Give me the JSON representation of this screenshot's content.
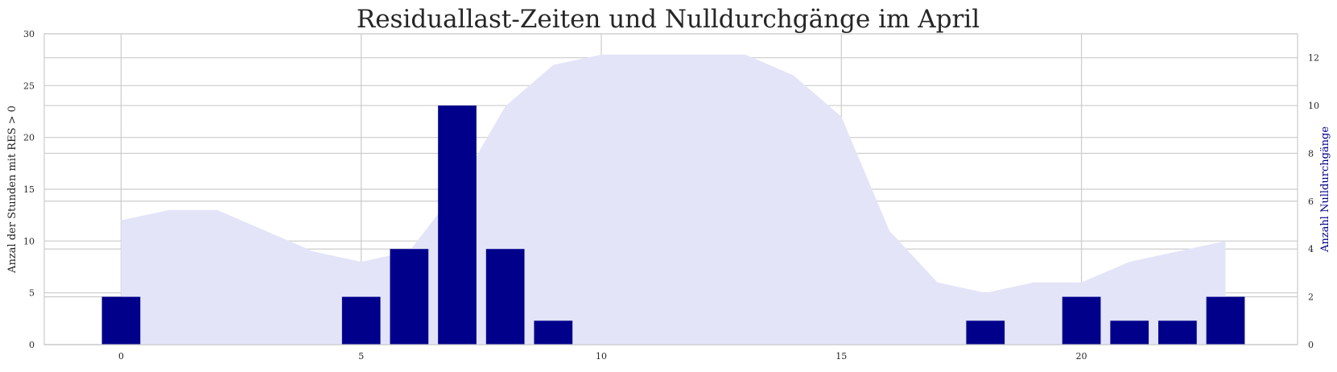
{
  "chart_data": {
    "type": "bar",
    "title": "Residuallast-Zeiten und Nulldurchgänge im April",
    "xlabel": "",
    "xlim": [
      -1.6,
      24.5
    ],
    "xticks": [
      0,
      5,
      10,
      15,
      20
    ],
    "grid": true,
    "y_left": {
      "label": "Anzal der Stunden mit RES > 0",
      "ylim": [
        0,
        30
      ],
      "ticks": [
        0,
        5,
        10,
        15,
        20,
        25,
        30
      ]
    },
    "y_right": {
      "label": "Anzahl Nulldurchgänge",
      "ylim": [
        0,
        13
      ],
      "ticks": [
        0,
        2,
        4,
        6,
        8,
        10,
        12
      ],
      "color": "#00008b"
    },
    "area_series": {
      "axis": "left",
      "color": "#e3e4f8",
      "x": [
        0,
        1,
        2,
        3,
        4,
        5,
        6,
        7,
        8,
        9,
        10,
        11,
        12,
        13,
        14,
        15,
        16,
        17,
        18,
        19,
        20,
        21,
        22,
        23
      ],
      "values": [
        12,
        13,
        13,
        11,
        9,
        8,
        9,
        15,
        23,
        27,
        28,
        28,
        28,
        28,
        26,
        22,
        11,
        6,
        5,
        6,
        6,
        8,
        9,
        10
      ]
    },
    "bar_series": {
      "axis": "right",
      "color": "#00008b",
      "x": [
        0,
        5,
        6,
        7,
        8,
        9,
        18,
        20,
        21,
        22,
        23
      ],
      "values": [
        2,
        2,
        4,
        10,
        4,
        1,
        1,
        2,
        1,
        1,
        2
      ]
    }
  }
}
